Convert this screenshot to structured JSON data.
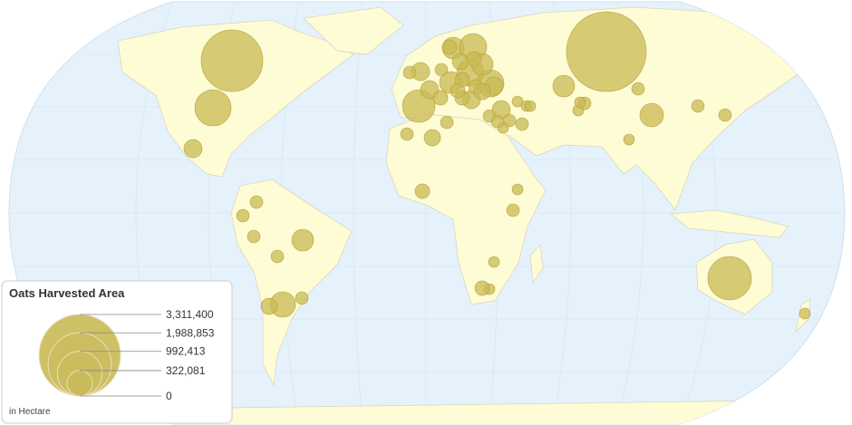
{
  "chart_data": {
    "type": "bubble-map",
    "title": "Oats Harvested Area",
    "unit_note": "in Hectare",
    "color": "#c9b954",
    "legend_sizes": [
      {
        "value": 3311400,
        "label": "3,311,400"
      },
      {
        "value": 1988853,
        "label": "1,988,853"
      },
      {
        "value": 992413,
        "label": "992,413"
      },
      {
        "value": 322081,
        "label": "322,081"
      },
      0
    ],
    "values": [
      3166000,
      1890000,
      654000,
      942000,
      164000,
      235000,
      320000,
      132000,
      80000,
      80000,
      80000,
      80000,
      80000,
      530000,
      164000,
      164000,
      235000,
      368000,
      235000,
      368000,
      105000,
      368000,
      235000,
      235000,
      276000,
      80000,
      164000,
      132000,
      80000,
      80000,
      80000,
      59000,
      80000,
      59000,
      80000,
      105000,
      59000,
      59000,
      105000,
      59000,
      59000,
      80000,
      164000,
      164000,
      105000,
      105000,
      80000,
      80000,
      105000,
      105000,
      132000,
      132000,
      80000,
      59000,
      59000,
      59000,
      80000,
      80000,
      80000,
      105000,
      105000,
      59000,
      59000
    ]
  }
}
